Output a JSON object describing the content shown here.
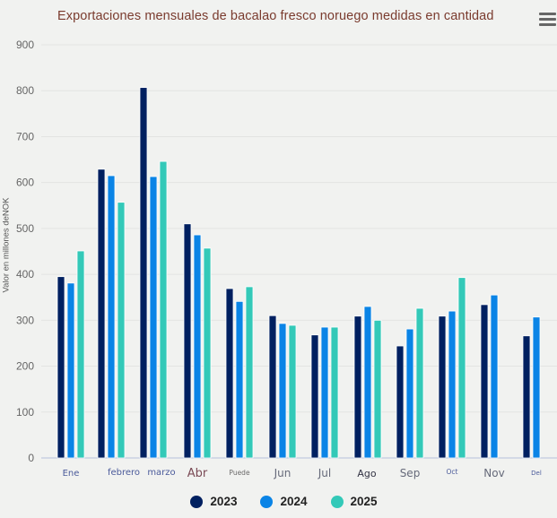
{
  "header": {
    "title": "Exportaciones mensuales de bacalao fresco noruego medidas en cantidad",
    "menu_icon": "hamburger-menu-icon"
  },
  "chart_data": {
    "type": "bar",
    "title": "Exportaciones mensuales de bacalao fresco noruego medidas en cantidad",
    "xlabel": "",
    "ylabel": "Valor en millones deNOK",
    "ylim": [
      0,
      900
    ],
    "yticks": [
      0,
      100,
      200,
      300,
      400,
      500,
      600,
      700,
      800,
      900
    ],
    "grid": true,
    "legend_position": "bottom-center",
    "categories": [
      "Ene",
      "febrero",
      "marzo",
      "Abr",
      "Puede",
      "Jun",
      "Jul",
      "Ago",
      "Sep",
      "Oct",
      "Nov",
      "Del"
    ],
    "category_label_colors": [
      "#4a5a9a",
      "#4a5a9a",
      "#4a5a9a",
      "#7a4a55",
      "#6b6a6a",
      "#666a7a",
      "#666a7a",
      "#333344",
      "#666a7a",
      "#4a5a9a",
      "#666a7a",
      "#4a5a9a"
    ],
    "series": [
      {
        "name": "2023",
        "color": "#002060",
        "values": [
          395,
          629,
          807,
          510,
          369,
          310,
          268,
          309,
          244,
          309,
          334,
          266
        ]
      },
      {
        "name": "2024",
        "color": "#0a84e6",
        "values": [
          381,
          615,
          613,
          486,
          341,
          293,
          285,
          330,
          281,
          320,
          355,
          307
        ]
      },
      {
        "name": "2025",
        "color": "#33c9b8",
        "values": [
          451,
          557,
          646,
          457,
          373,
          289,
          285,
          300,
          326,
          393,
          null,
          null
        ]
      }
    ]
  }
}
